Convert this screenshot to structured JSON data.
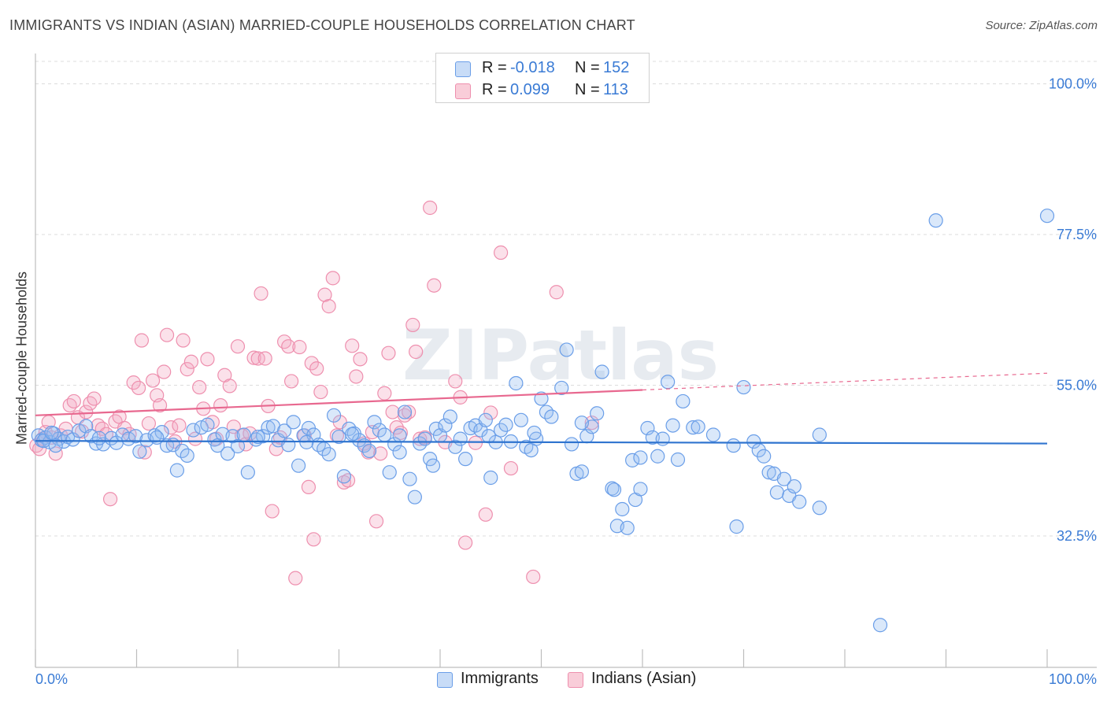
{
  "header": {
    "title": "IMMIGRANTS VS INDIAN (ASIAN) MARRIED-COUPLE HOUSEHOLDS CORRELATION CHART",
    "source": "Source: ZipAtlas.com"
  },
  "watermark": "ZIPatlas",
  "stats_legend": [
    {
      "r_label": "R =",
      "r_value": "-0.018",
      "n_label": "N =",
      "n_value": "152",
      "color": "#6a9ee8"
    },
    {
      "r_label": "R =",
      "r_value": "0.099",
      "n_label": "N =",
      "n_value": "113",
      "color": "#ee8fae"
    }
  ],
  "chart_data": {
    "type": "scatter",
    "xlabel": "",
    "ylabel": "Married-couple Households",
    "xlim": [
      0,
      100
    ],
    "ylim": [
      13,
      103
    ],
    "x_tick_labels": [
      "0.0%",
      "100.0%"
    ],
    "y_ticks": [
      32.5,
      55.0,
      77.5,
      100.0
    ],
    "y_tick_labels": [
      "32.5%",
      "55.0%",
      "77.5%",
      "100.0%"
    ],
    "grid": "horizontal dashed",
    "legend_position": "bottom",
    "series": [
      {
        "name": "Immigrants",
        "color": "#6a9ee8",
        "trend": {
          "x0": 0,
          "y0": 46.7,
          "x1": 100,
          "y1": 46.3
        },
        "points": [
          [
            0.3,
            47.5
          ],
          [
            0.6,
            46.8
          ],
          [
            1.0,
            47.2
          ],
          [
            1.4,
            46.5
          ],
          [
            1.8,
            47.8
          ],
          [
            2.3,
            47.0
          ],
          [
            2.8,
            46.6
          ],
          [
            3.2,
            47.3
          ],
          [
            3.7,
            46.9
          ],
          [
            4.3,
            48.2
          ],
          [
            5.0,
            48.9
          ],
          [
            5.5,
            47.4
          ],
          [
            6.0,
            46.3
          ],
          [
            6.7,
            46.2
          ],
          [
            7.5,
            47.1
          ],
          [
            8.0,
            46.4
          ],
          [
            8.6,
            47.6
          ],
          [
            9.2,
            47.0
          ],
          [
            9.9,
            47.4
          ],
          [
            10.3,
            45.1
          ],
          [
            11.0,
            46.8
          ],
          [
            11.8,
            47.5
          ],
          [
            12.5,
            48.0
          ],
          [
            13.0,
            46.0
          ],
          [
            13.6,
            46.1
          ],
          [
            14.0,
            42.3
          ],
          [
            14.5,
            45.2
          ],
          [
            15.0,
            44.5
          ],
          [
            15.6,
            48.3
          ],
          [
            16.4,
            48.7
          ],
          [
            17.0,
            49.1
          ],
          [
            17.7,
            46.9
          ],
          [
            18.5,
            47.7
          ],
          [
            19.0,
            44.8
          ],
          [
            19.5,
            47.4
          ],
          [
            20.0,
            45.9
          ],
          [
            20.6,
            47.6
          ],
          [
            21.0,
            42.0
          ],
          [
            21.8,
            46.9
          ],
          [
            22.5,
            47.4
          ],
          [
            23.0,
            48.7
          ],
          [
            23.5,
            48.9
          ],
          [
            24.0,
            46.8
          ],
          [
            24.6,
            48.2
          ],
          [
            25.0,
            46.1
          ],
          [
            25.5,
            49.5
          ],
          [
            26.0,
            43.0
          ],
          [
            26.5,
            47.5
          ],
          [
            27.0,
            48.6
          ],
          [
            27.5,
            47.6
          ],
          [
            28.0,
            46.1
          ],
          [
            28.5,
            45.5
          ],
          [
            29.0,
            44.7
          ],
          [
            29.5,
            50.5
          ],
          [
            30.0,
            47.3
          ],
          [
            30.5,
            41.4
          ],
          [
            31.0,
            48.5
          ],
          [
            31.5,
            47.8
          ],
          [
            32.0,
            46.8
          ],
          [
            32.5,
            46.0
          ],
          [
            33.0,
            45.2
          ],
          [
            33.5,
            49.5
          ],
          [
            34.0,
            48.3
          ],
          [
            34.5,
            47.6
          ],
          [
            35.0,
            42.0
          ],
          [
            35.5,
            46.2
          ],
          [
            36.0,
            45.0
          ],
          [
            36.5,
            51.0
          ],
          [
            37.0,
            41.0
          ],
          [
            37.5,
            38.3
          ],
          [
            38.0,
            46.3
          ],
          [
            38.5,
            47.0
          ],
          [
            39.0,
            44.0
          ],
          [
            39.3,
            43.0
          ],
          [
            39.6,
            48.5
          ],
          [
            40.0,
            47.5
          ],
          [
            40.5,
            49.0
          ],
          [
            41.0,
            50.3
          ],
          [
            41.5,
            45.8
          ],
          [
            42.0,
            47.0
          ],
          [
            42.5,
            44.0
          ],
          [
            43.0,
            48.6
          ],
          [
            43.5,
            49.0
          ],
          [
            44.0,
            48.3
          ],
          [
            44.5,
            49.8
          ],
          [
            45.0,
            41.2
          ],
          [
            45.5,
            46.5
          ],
          [
            46.0,
            48.3
          ],
          [
            46.5,
            49.1
          ],
          [
            47.0,
            46.6
          ],
          [
            47.5,
            55.3
          ],
          [
            48.0,
            49.8
          ],
          [
            48.5,
            45.8
          ],
          [
            49.0,
            45.3
          ],
          [
            49.5,
            47.0
          ],
          [
            50.0,
            53.0
          ],
          [
            50.5,
            51.0
          ],
          [
            51.0,
            50.3
          ],
          [
            52.0,
            54.6
          ],
          [
            52.5,
            60.3
          ],
          [
            53.0,
            46.2
          ],
          [
            53.5,
            41.8
          ],
          [
            54.0,
            42.1
          ],
          [
            54.5,
            47.4
          ],
          [
            55.0,
            48.8
          ],
          [
            55.5,
            50.8
          ],
          [
            56.0,
            57.0
          ],
          [
            57.0,
            39.6
          ],
          [
            57.2,
            39.4
          ],
          [
            57.5,
            34.0
          ],
          [
            58.0,
            36.5
          ],
          [
            58.5,
            33.7
          ],
          [
            59.0,
            43.8
          ],
          [
            59.3,
            37.9
          ],
          [
            59.8,
            39.5
          ],
          [
            60.5,
            48.6
          ],
          [
            61.0,
            47.2
          ],
          [
            61.5,
            44.4
          ],
          [
            62.0,
            47.0
          ],
          [
            62.5,
            55.5
          ],
          [
            63.0,
            49.0
          ],
          [
            63.5,
            43.9
          ],
          [
            64.0,
            52.6
          ],
          [
            65.0,
            48.7
          ],
          [
            65.5,
            48.8
          ],
          [
            67.0,
            47.6
          ],
          [
            69.0,
            46.0
          ],
          [
            69.3,
            33.9
          ],
          [
            70.0,
            54.7
          ],
          [
            71.0,
            46.6
          ],
          [
            71.5,
            45.3
          ],
          [
            72.0,
            44.4
          ],
          [
            72.5,
            42.0
          ],
          [
            73.0,
            41.8
          ],
          [
            73.3,
            39.0
          ],
          [
            74.0,
            41.0
          ],
          [
            74.5,
            38.5
          ],
          [
            75.0,
            39.9
          ],
          [
            75.5,
            37.6
          ],
          [
            77.5,
            36.7
          ],
          [
            77.5,
            47.6
          ],
          [
            83.5,
            19.2
          ],
          [
            89.0,
            79.6
          ],
          [
            100.0,
            80.3
          ],
          [
            0.8,
            46.7
          ],
          [
            1.6,
            47.9
          ],
          [
            2.0,
            46.0
          ],
          [
            6.3,
            47.1
          ],
          [
            12.0,
            47.2
          ],
          [
            18.0,
            46.0
          ],
          [
            22.0,
            47.3
          ],
          [
            26.8,
            46.5
          ],
          [
            31.3,
            47.7
          ],
          [
            36.0,
            47.5
          ],
          [
            44.8,
            47.4
          ],
          [
            49.3,
            47.9
          ],
          [
            54.0,
            49.4
          ],
          [
            59.8,
            44.2
          ]
        ]
      },
      {
        "name": "Indians (Asian)",
        "color": "#ee8fae",
        "trend": {
          "x0": 0,
          "y0": 50.5,
          "x1": 60,
          "y1": 54.3,
          "dash_x1": 100,
          "dash_y1": 56.8
        },
        "points": [
          [
            0.1,
            46.0
          ],
          [
            0.4,
            45.5
          ],
          [
            0.7,
            47.0
          ],
          [
            1.0,
            48.0
          ],
          [
            1.3,
            49.5
          ],
          [
            1.6,
            47.2
          ],
          [
            2.0,
            44.8
          ],
          [
            2.5,
            47.5
          ],
          [
            3.0,
            48.5
          ],
          [
            3.4,
            52.0
          ],
          [
            3.8,
            52.6
          ],
          [
            4.2,
            50.2
          ],
          [
            4.6,
            48.1
          ],
          [
            5.0,
            51.0
          ],
          [
            5.4,
            52.3
          ],
          [
            5.8,
            53.0
          ],
          [
            6.2,
            49.0
          ],
          [
            6.6,
            48.5
          ],
          [
            7.0,
            47.7
          ],
          [
            7.4,
            38.0
          ],
          [
            7.9,
            49.6
          ],
          [
            8.3,
            50.3
          ],
          [
            8.8,
            48.6
          ],
          [
            9.3,
            47.7
          ],
          [
            9.7,
            55.4
          ],
          [
            10.2,
            54.6
          ],
          [
            10.5,
            61.7
          ],
          [
            10.8,
            45.0
          ],
          [
            11.2,
            49.3
          ],
          [
            11.6,
            55.7
          ],
          [
            12.0,
            53.5
          ],
          [
            12.3,
            52.0
          ],
          [
            12.7,
            57.0
          ],
          [
            13.0,
            62.5
          ],
          [
            13.4,
            48.7
          ],
          [
            13.8,
            46.6
          ],
          [
            14.2,
            49.0
          ],
          [
            14.6,
            61.7
          ],
          [
            15.0,
            57.4
          ],
          [
            15.4,
            58.5
          ],
          [
            15.8,
            47.0
          ],
          [
            16.2,
            54.7
          ],
          [
            16.6,
            51.5
          ],
          [
            17.0,
            58.9
          ],
          [
            17.5,
            49.5
          ],
          [
            17.9,
            47.0
          ],
          [
            18.3,
            52.0
          ],
          [
            18.7,
            56.5
          ],
          [
            19.2,
            54.9
          ],
          [
            19.6,
            48.8
          ],
          [
            20.0,
            60.8
          ],
          [
            20.4,
            47.5
          ],
          [
            20.8,
            46.2
          ],
          [
            21.2,
            47.8
          ],
          [
            21.6,
            59.1
          ],
          [
            22.0,
            59.0
          ],
          [
            22.3,
            68.7
          ],
          [
            22.7,
            59.0
          ],
          [
            23.0,
            51.9
          ],
          [
            23.4,
            36.2
          ],
          [
            23.8,
            45.5
          ],
          [
            24.2,
            47.2
          ],
          [
            24.6,
            61.5
          ],
          [
            25.0,
            60.8
          ],
          [
            25.3,
            55.6
          ],
          [
            25.7,
            26.2
          ],
          [
            26.1,
            60.7
          ],
          [
            26.6,
            47.5
          ],
          [
            27.0,
            39.8
          ],
          [
            27.3,
            58.3
          ],
          [
            27.5,
            32.0
          ],
          [
            27.8,
            57.5
          ],
          [
            28.2,
            54.0
          ],
          [
            28.6,
            68.5
          ],
          [
            29.0,
            66.8
          ],
          [
            29.4,
            71.0
          ],
          [
            29.8,
            47.5
          ],
          [
            30.1,
            49.5
          ],
          [
            30.5,
            40.5
          ],
          [
            30.9,
            40.8
          ],
          [
            31.3,
            60.9
          ],
          [
            31.7,
            56.3
          ],
          [
            32.1,
            58.9
          ],
          [
            32.5,
            46.3
          ],
          [
            32.9,
            45.0
          ],
          [
            33.3,
            48.0
          ],
          [
            33.7,
            34.7
          ],
          [
            34.1,
            44.8
          ],
          [
            34.5,
            53.8
          ],
          [
            34.9,
            59.8
          ],
          [
            35.3,
            51.0
          ],
          [
            35.7,
            48.7
          ],
          [
            36.1,
            47.9
          ],
          [
            36.5,
            50.5
          ],
          [
            36.9,
            51.0
          ],
          [
            37.3,
            64.0
          ],
          [
            37.6,
            60.0
          ],
          [
            38.0,
            47.0
          ],
          [
            38.5,
            47.2
          ],
          [
            39.0,
            81.5
          ],
          [
            39.4,
            69.9
          ],
          [
            40.5,
            46.5
          ],
          [
            41.5,
            55.6
          ],
          [
            42.0,
            53.2
          ],
          [
            42.5,
            31.5
          ],
          [
            43.5,
            46.4
          ],
          [
            44.5,
            35.7
          ],
          [
            45.0,
            50.9
          ],
          [
            46.0,
            74.8
          ],
          [
            47.0,
            42.6
          ],
          [
            49.2,
            26.4
          ],
          [
            51.5,
            68.9
          ],
          [
            55.0,
            49.4
          ]
        ]
      }
    ]
  }
}
